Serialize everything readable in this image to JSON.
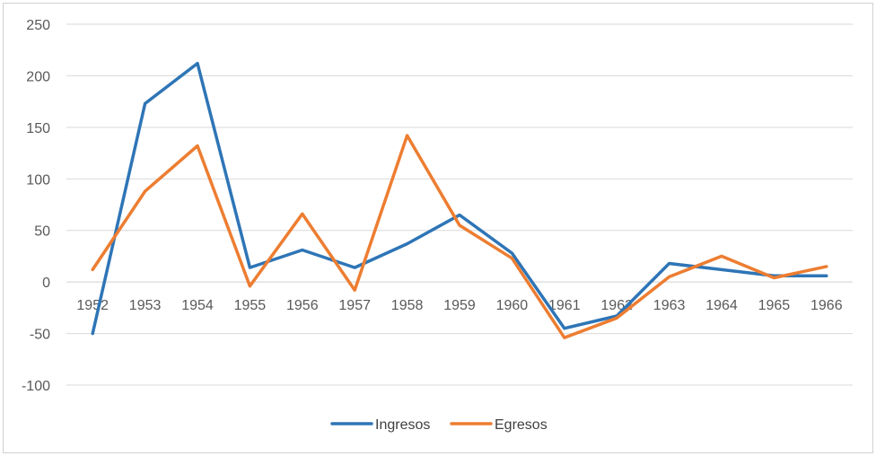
{
  "chart_data": {
    "type": "line",
    "title": "",
    "xlabel": "",
    "ylabel": "",
    "categories": [
      "1952",
      "1953",
      "1954",
      "1955",
      "1956",
      "1957",
      "1958",
      "1959",
      "1960",
      "1961",
      "1962",
      "1963",
      "1964",
      "1965",
      "1966"
    ],
    "series": [
      {
        "name": "Ingresos",
        "color": "#2e75b6",
        "values": [
          -50,
          173,
          212,
          14,
          31,
          14,
          37,
          65,
          28,
          -45,
          -33,
          18,
          12,
          6,
          6
        ]
      },
      {
        "name": "Egresos",
        "color": "#ed7d31",
        "values": [
          12,
          88,
          132,
          -4,
          66,
          -8,
          142,
          55,
          23,
          -54,
          -35,
          5,
          25,
          4,
          15
        ]
      }
    ],
    "ylim": [
      -100,
      250
    ],
    "yticks": [
      "250",
      "200",
      "150",
      "100",
      "50",
      "0",
      "-50",
      "-100"
    ],
    "ytick_values": [
      250,
      200,
      150,
      100,
      50,
      0,
      -50,
      -100
    ],
    "grid": true,
    "legend_position": "bottom"
  }
}
